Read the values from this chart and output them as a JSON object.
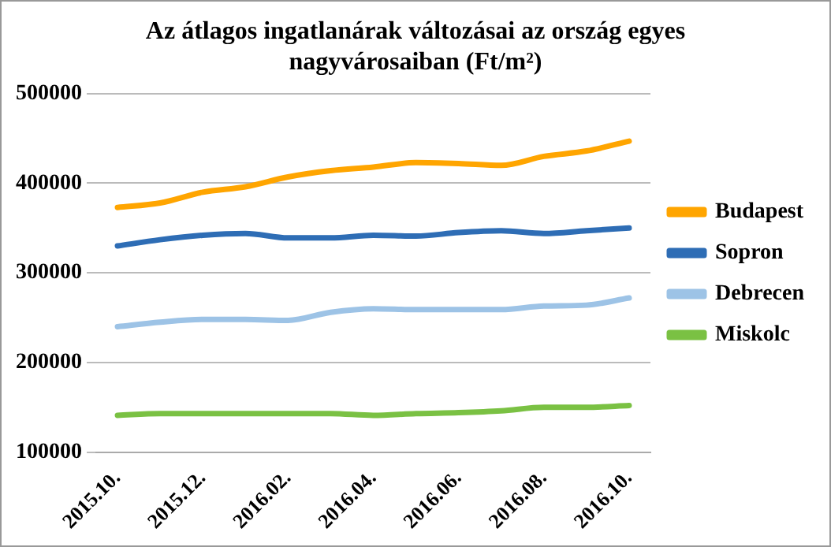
{
  "chart_data": {
    "type": "line",
    "title": "Az átlagos ingatlanárak változásai az ország egyes nagyvárosaiban (Ft/m²)",
    "categories": [
      "2015.10.",
      null,
      "2015.12.",
      null,
      "2016.02.",
      null,
      "2016.04.",
      null,
      "2016.06.",
      null,
      "2016.08.",
      null,
      "2016.10."
    ],
    "series": [
      {
        "name": "Budapest",
        "color": "#ffa500",
        "values": [
          373000,
          378000,
          390000,
          396000,
          407000,
          414000,
          418000,
          423000,
          422000,
          420000,
          430000,
          436000,
          447000
        ]
      },
      {
        "name": "Sopron",
        "color": "#2e6db5",
        "values": [
          330000,
          337000,
          342000,
          344000,
          339000,
          339000,
          342000,
          341000,
          345000,
          347000,
          344000,
          347000,
          350000
        ]
      },
      {
        "name": "Debrecen",
        "color": "#9dc3e6",
        "values": [
          240000,
          245000,
          248000,
          248000,
          247000,
          256000,
          260000,
          259000,
          259000,
          259000,
          263000,
          264000,
          272000
        ]
      },
      {
        "name": "Miskolc",
        "color": "#7ac143",
        "values": [
          141000,
          143000,
          143000,
          143000,
          143000,
          143000,
          141000,
          143000,
          144000,
          146000,
          150000,
          150000,
          152000
        ]
      }
    ],
    "ylim": [
      100000,
      500000
    ],
    "yticks": [
      100000,
      200000,
      300000,
      400000,
      500000
    ],
    "grid": "y",
    "legend": "right",
    "marker": "none",
    "line_style": "solid"
  }
}
